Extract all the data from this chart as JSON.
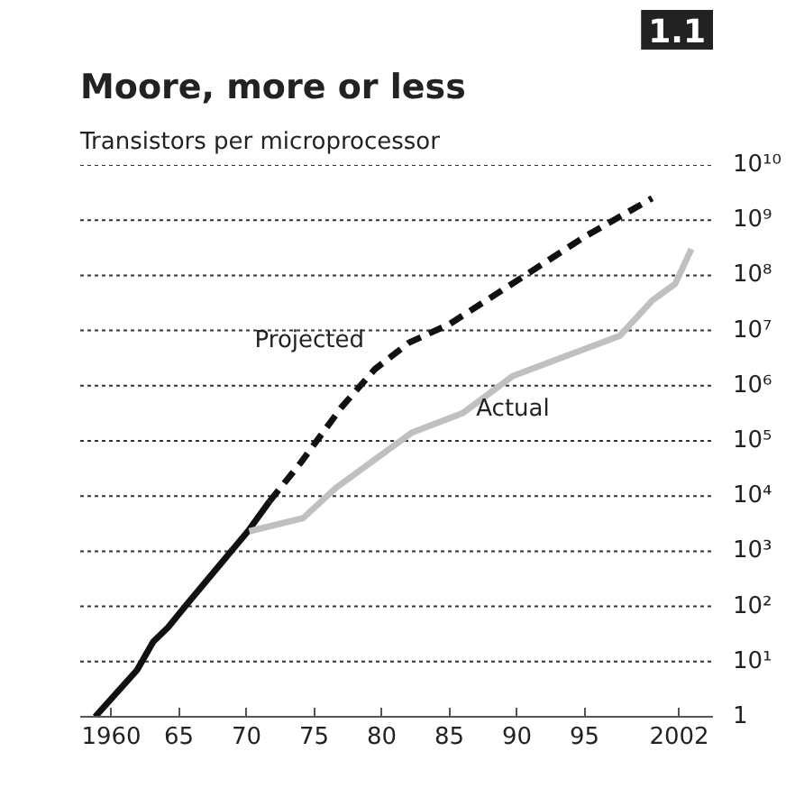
{
  "chart_data": {
    "type": "line",
    "title": "Moore, more or less",
    "subtitle": "Transistors per microprocessor",
    "annotations": [
      "1.1"
    ],
    "log": "y",
    "grid": "y",
    "legend": false,
    "marker": "none",
    "xlim": [
      1957.7,
      2004.5
    ],
    "ylim": [
      1,
      10000000000
    ],
    "xticks": [
      {
        "value": 1960,
        "label": "1960"
      },
      {
        "value": 1965,
        "label": "65"
      },
      {
        "value": 1970,
        "label": "70"
      },
      {
        "value": 1975,
        "label": "75"
      },
      {
        "value": 1980,
        "label": "80"
      },
      {
        "value": 1985,
        "label": "85"
      },
      {
        "value": 1990,
        "label": "90"
      },
      {
        "value": 1995,
        "label": "95"
      },
      {
        "value": 2002,
        "label": "2002"
      }
    ],
    "yticks": [
      1,
      {
        "value": 10,
        "label": "10¹"
      },
      {
        "value": 100,
        "label": "10²"
      },
      {
        "value": 1000,
        "label": "10³"
      },
      {
        "value": 10000,
        "label": "10⁴"
      },
      {
        "value": 100000,
        "label": "10⁵"
      },
      {
        "value": 1000000,
        "label": "10⁶"
      },
      {
        "value": 10000000,
        "label": "10⁷"
      },
      {
        "value": 100000000,
        "label": "10⁸"
      },
      {
        "value": 1000000000,
        "label": "10⁹"
      },
      {
        "value": 10000000000,
        "label": "10¹⁰"
      }
    ],
    "series": [
      {
        "color": "#111111",
        "line_style": "solid",
        "x": [
          1958.8,
          1961.9,
          1963.1,
          1964.2,
          1965.6,
          1970.1,
          1971.7
        ],
        "values": [
          1,
          7,
          23,
          42,
          110,
          2300,
          8000
        ]
      },
      {
        "name": "Projected",
        "color": "#111111",
        "line_style": "dashed",
        "x": [
          1971.7,
          1974,
          1977,
          1979.5,
          1982,
          1985,
          1990,
          1995,
          2000
        ],
        "values": [
          8000,
          40000,
          400000,
          2000000,
          6000000,
          13000000,
          80000000,
          500000000,
          2500000000
        ]
      },
      {
        "name": "Actual",
        "color": "#c0c0c0",
        "line_style": "solid",
        "x": [
          1970.2,
          1974.2,
          1976.6,
          1982.2,
          1986,
          1989.7,
          1997.6,
          2000,
          2001.7,
          2002.9
        ],
        "values": [
          2300,
          4000,
          14000,
          140000,
          320000,
          1500000,
          8000000,
          35000000,
          70000000,
          300000000
        ]
      }
    ]
  }
}
